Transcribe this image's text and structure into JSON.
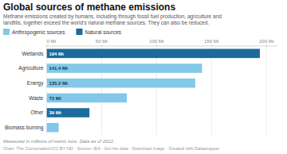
{
  "chart_data": {
    "type": "bar",
    "orientation": "horizontal",
    "stacked": true,
    "title": "Global sources of methane emissions",
    "subtitle": "Methane emissions created by humans, including through fossil fuel production, agriculture and\nlandfills, together exceed the world’s natural methane sources. They can also be reduced.",
    "categories": [
      "Wetlands",
      "Agriculture",
      "Energy",
      "Waste",
      "Other",
      "Biomass burning"
    ],
    "series": [
      {
        "name": "Anthropogenic sources",
        "color": "#82c8e8",
        "values": [
          null,
          141.4,
          135.2,
          73,
          null,
          11
        ],
        "value_labels": [
          null,
          "141.4 Mt",
          "135.2 Mt",
          "73 Mt",
          null,
          null
        ]
      },
      {
        "name": "Natural sources",
        "color": "#1b6b9c",
        "values": [
          194,
          null,
          null,
          null,
          39,
          null
        ],
        "value_labels": [
          "194 Mt",
          null,
          null,
          null,
          "39 Mt",
          null
        ]
      }
    ],
    "data_labels": true,
    "xlim": [
      0,
      210
    ],
    "xticks": [
      {
        "value": 0,
        "label": "0 Mt"
      },
      {
        "value": 50,
        "label": "50 Mt"
      },
      {
        "value": 100,
        "label": "100 Mt"
      },
      {
        "value": 150,
        "label": "150 Mt"
      },
      {
        "value": 200,
        "label": "200 Mt"
      }
    ],
    "grid": true,
    "legend": "top-left",
    "annotations": [
      "Measured in millions of metric tons. Data as of 2022.",
      "Chart: The Conversation/CC-BY-ND · Source: IEA · Get the data · Download image · Created with Datawrapper"
    ]
  }
}
